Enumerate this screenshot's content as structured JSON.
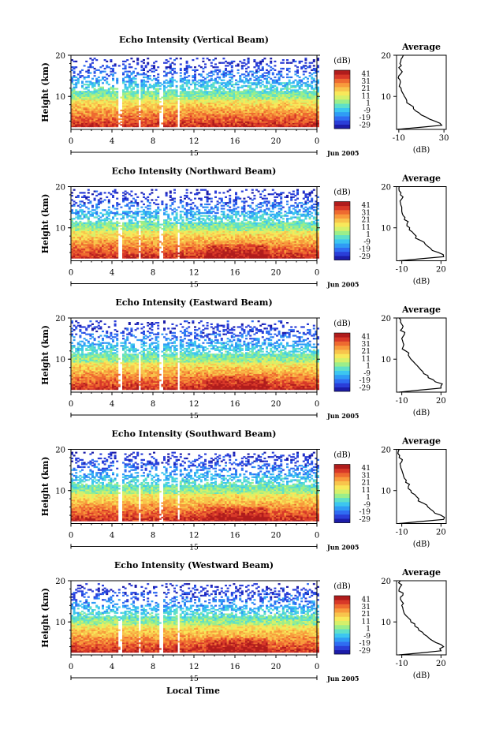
{
  "chart_data": {
    "type": "heatmap",
    "colorbar": {
      "unit_label": "(dB)",
      "ticks": [
        41,
        31,
        21,
        11,
        1,
        -9,
        -19,
        -29
      ],
      "range": [
        -34,
        46
      ],
      "colors": [
        "#1c1ca8",
        "#2a3ed8",
        "#2f6cf2",
        "#2f9cf5",
        "#3cc6f0",
        "#5fe0c8",
        "#9bee8a",
        "#d6f06a",
        "#f8e85a",
        "#f8c44c",
        "#f89a3c",
        "#ee6a30",
        "#d83828",
        "#b01c1c"
      ]
    },
    "x_axis": {
      "label": "Local Time",
      "ticks": [
        "0",
        "4",
        "8",
        "12",
        "16",
        "20",
        "0"
      ],
      "tick_values": [
        0,
        4,
        8,
        12,
        16,
        20,
        24
      ],
      "range": [
        0,
        24
      ],
      "date_day": "15",
      "date_month": "Jun 2005"
    },
    "y_axis": {
      "label": "Height (km)",
      "ticks": [
        "20",
        "10"
      ],
      "tick_values": [
        20,
        10
      ],
      "range": [
        2,
        20
      ]
    },
    "average_title": "Average",
    "average_xlabel": "(dB)",
    "panels": [
      {
        "title": "Echo Intensity (Vertical Beam)",
        "avg_ticks": [
          "-10",
          "30"
        ],
        "avg_tick_values": [
          -10,
          30
        ],
        "avg_range": [
          -12,
          32
        ],
        "average_profile": {
          "height_km": [
            2,
            3,
            4,
            5,
            6,
            7,
            8,
            9,
            10,
            11,
            12,
            13,
            14,
            15,
            16,
            17,
            18,
            19,
            20
          ],
          "db": [
            -12,
            28,
            22,
            14,
            8,
            3,
            0,
            -3,
            -5,
            -7,
            -8,
            -9,
            -9,
            -10,
            -7,
            -10,
            -9,
            -8,
            -6
          ]
        }
      },
      {
        "title": "Echo Intensity (Northward Beam)",
        "avg_ticks": [
          "-10",
          "20"
        ],
        "avg_tick_values": [
          -10,
          20
        ],
        "avg_range": [
          -14,
          24
        ],
        "average_profile": {
          "height_km": [
            2,
            3,
            4,
            5,
            6,
            7,
            8,
            9,
            10,
            11,
            12,
            13,
            14,
            15,
            16,
            17,
            18,
            19,
            20
          ],
          "db": [
            -12,
            22,
            18,
            12,
            8,
            4,
            1,
            -2,
            -4,
            -6,
            -8,
            -9,
            -10,
            -10,
            -11,
            -10,
            -11,
            -12,
            -12
          ]
        }
      },
      {
        "title": "Echo Intensity (Eastward Beam)",
        "avg_ticks": [
          "-10",
          "20"
        ],
        "avg_tick_values": [
          -10,
          20
        ],
        "avg_range": [
          -14,
          24
        ],
        "average_profile": {
          "height_km": [
            2,
            3,
            4,
            5,
            6,
            7,
            8,
            9,
            10,
            11,
            12,
            13,
            14,
            15,
            16,
            17,
            18,
            19,
            20
          ],
          "db": [
            -12,
            20,
            21,
            14,
            10,
            6,
            3,
            0,
            -3,
            -5,
            -7,
            -9,
            -9,
            -10,
            -8,
            -11,
            -9,
            -11,
            -12
          ]
        }
      },
      {
        "title": "Echo Intensity (Southward Beam)",
        "avg_ticks": [
          "-10",
          "20"
        ],
        "avg_tick_values": [
          -10,
          20
        ],
        "avg_range": [
          -14,
          24
        ],
        "average_profile": {
          "height_km": [
            2,
            3,
            4,
            5,
            6,
            7,
            8,
            9,
            10,
            11,
            12,
            13,
            14,
            15,
            16,
            17,
            18,
            19,
            20
          ],
          "db": [
            -12,
            22,
            20,
            14,
            10,
            6,
            3,
            0,
            -3,
            -5,
            -7,
            -8,
            -9,
            -10,
            -11,
            -10,
            -12,
            -13,
            -12
          ]
        }
      },
      {
        "title": "Echo Intensity (Westward Beam)",
        "avg_ticks": [
          "-10",
          "20"
        ],
        "avg_tick_values": [
          -10,
          20
        ],
        "avg_range": [
          -14,
          24
        ],
        "average_profile": {
          "height_km": [
            2,
            3,
            4,
            5,
            6,
            7,
            8,
            9,
            10,
            11,
            12,
            13,
            14,
            15,
            16,
            17,
            18,
            19,
            20
          ],
          "db": [
            -12,
            20,
            22,
            16,
            11,
            7,
            3,
            0,
            -3,
            -5,
            -8,
            -9,
            -10,
            -10,
            -11,
            -9,
            -12,
            -10,
            -11
          ]
        }
      }
    ]
  }
}
